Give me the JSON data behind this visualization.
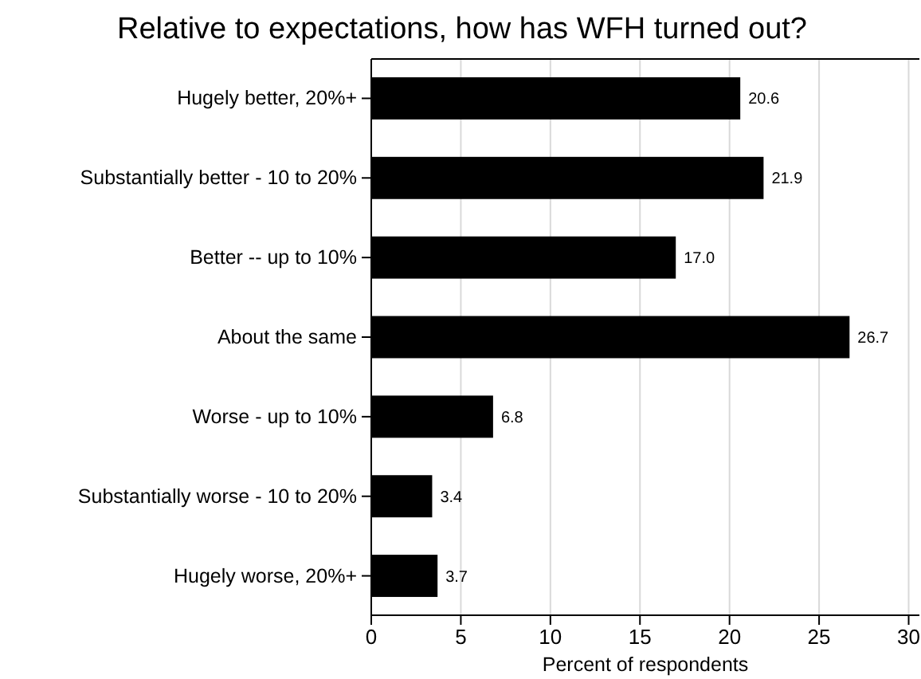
{
  "chart_data": {
    "type": "bar",
    "orientation": "horizontal",
    "title": "Relative to expectations, how has WFH turned out?",
    "xlabel": "Percent of respondents",
    "categories": [
      "Hugely better, 20%+",
      "Substantially better - 10 to 20%",
      "Better -- up to 10%",
      "About the same",
      "Worse - up to 10%",
      "Substantially worse - 10 to 20%",
      "Hugely worse, 20%+"
    ],
    "values": [
      20.6,
      21.9,
      17.0,
      26.7,
      6.8,
      3.4,
      3.7
    ],
    "value_labels": [
      "20.6",
      "21.9",
      "17.0",
      "26.7",
      "6.8",
      "3.4",
      "3.7"
    ],
    "color": "#000000",
    "xlim": [
      0,
      30.6
    ],
    "xticks": [
      0,
      5,
      10,
      15,
      20,
      25,
      30
    ],
    "grid": "x"
  }
}
